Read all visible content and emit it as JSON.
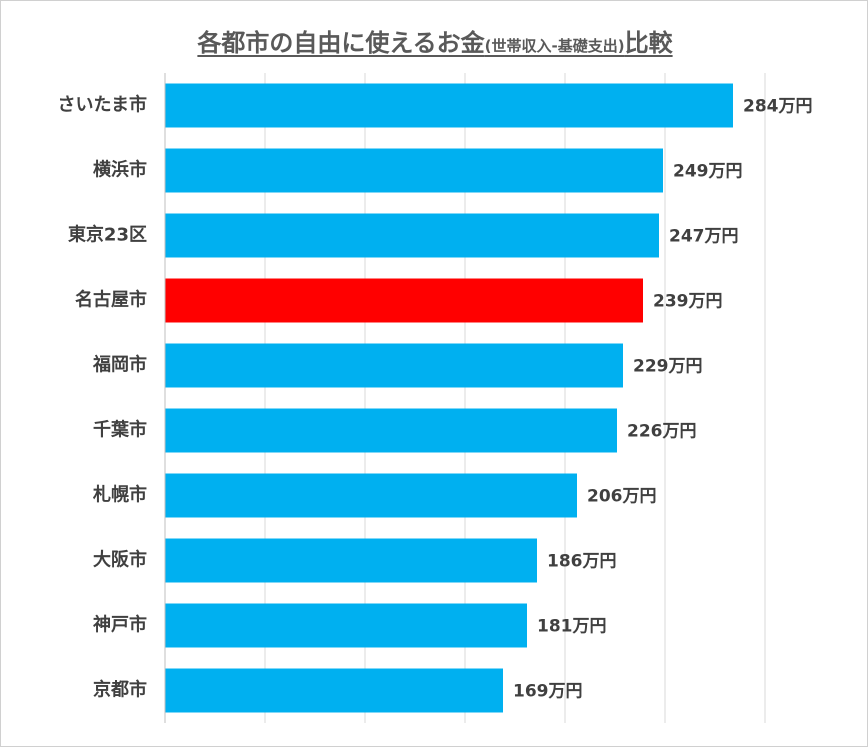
{
  "chart_data": {
    "type": "bar",
    "orientation": "horizontal",
    "title_main": "各都市の自由に使えるお金",
    "title_paren": "(世帯収入-基礎支出)",
    "title_suffix": "比較",
    "unit": "万円",
    "categories": [
      "さいたま市",
      "横浜市",
      "東京23区",
      "名古屋市",
      "福岡市",
      "千葉市",
      "札幌市",
      "大阪市",
      "神戸市",
      "京都市"
    ],
    "values": [
      284,
      249,
      247,
      239,
      229,
      226,
      206,
      186,
      181,
      169
    ],
    "value_labels": [
      "284万円",
      "249万円",
      "247万円",
      "239万円",
      "229万円",
      "226万円",
      "206万円",
      "186万円",
      "181万円",
      "169万円"
    ],
    "highlight_category": "名古屋市",
    "xlim": [
      0,
      300
    ],
    "grid": true,
    "legend": "none",
    "colors": {
      "bar": "#00B0F0",
      "highlight": "#FF0000",
      "grid": "#D9D9D9"
    }
  }
}
